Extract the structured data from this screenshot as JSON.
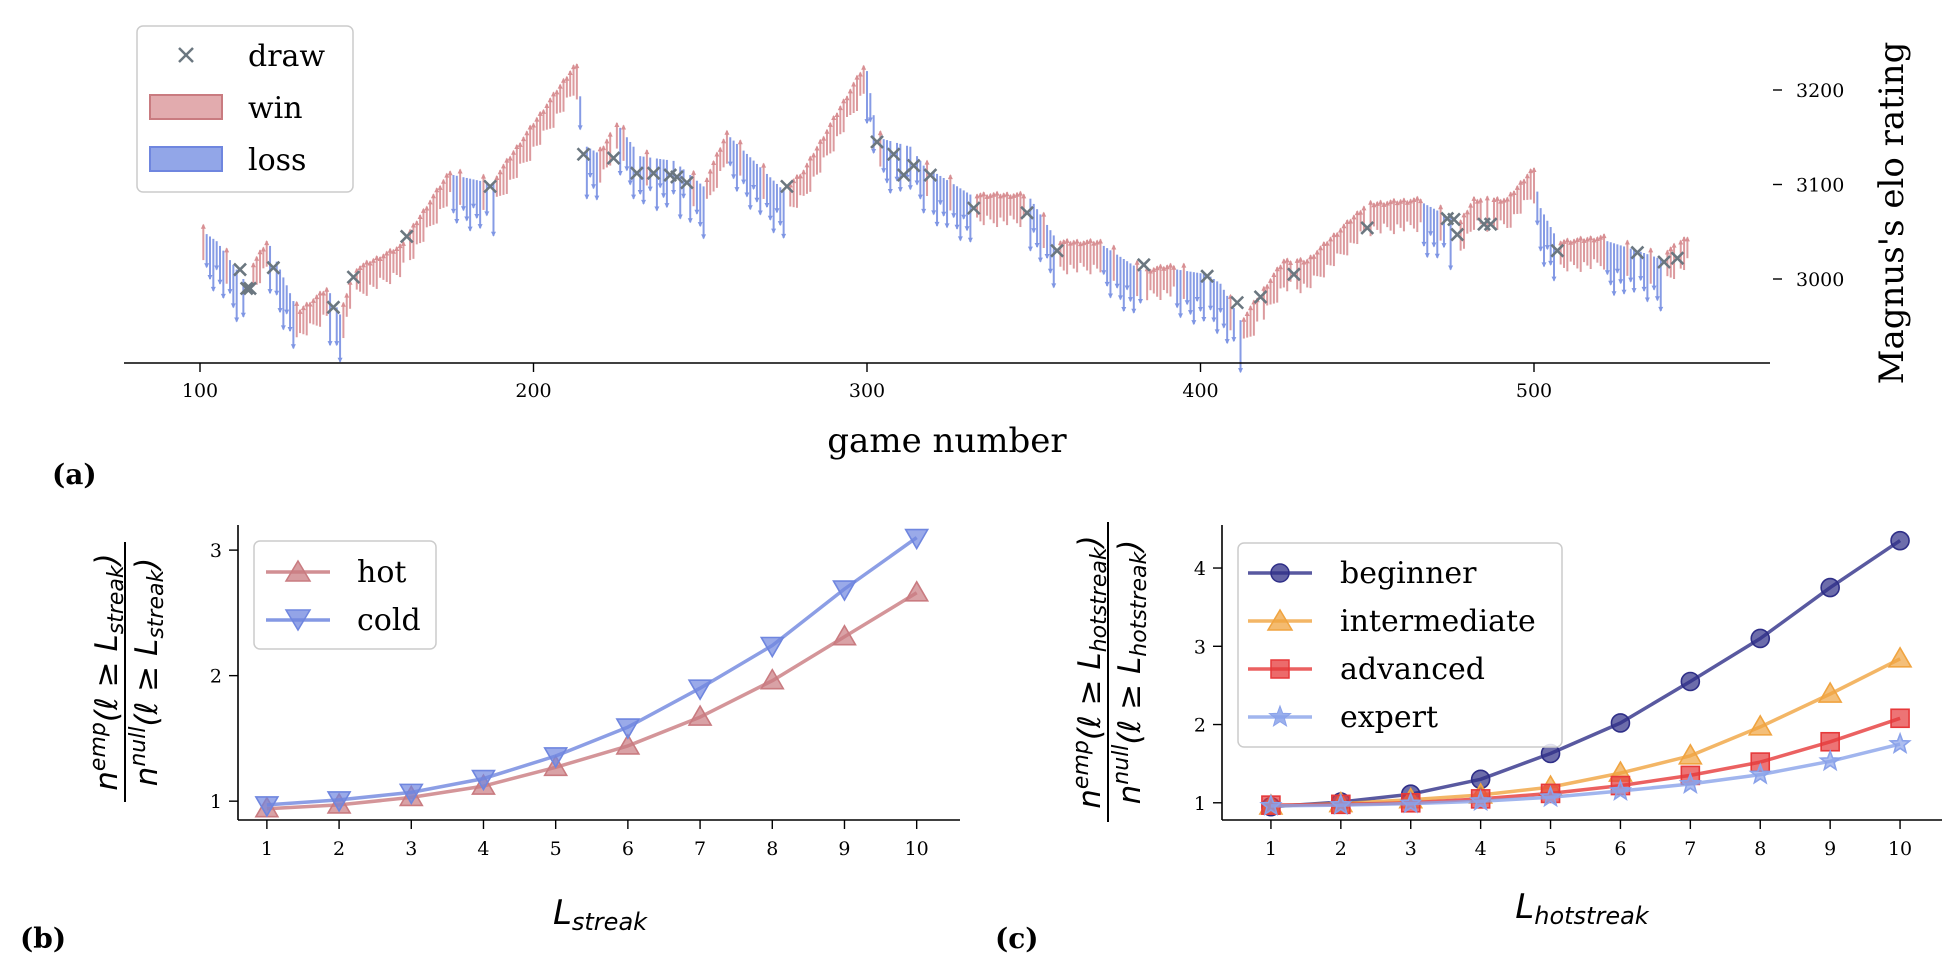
{
  "chart_data": [
    {
      "panel": "(a)",
      "type": "line",
      "xlabel": "game number",
      "ylabel": "Magnus's elo rating",
      "xticks": [
        100,
        200,
        300,
        400,
        500
      ],
      "yticks": [
        3000,
        3100,
        3200
      ],
      "xlim": [
        77,
        570
      ],
      "ylim": [
        2910,
        3290
      ],
      "legend": {
        "placement": "top-left",
        "entries": [
          "draw",
          "win",
          "loss"
        ]
      },
      "colors": {
        "draw": "#6b7780",
        "win": "#d88f93",
        "loss": "#7f96e4"
      },
      "waypoints": [
        [
          100,
          3050
        ],
        [
          104,
          3040
        ],
        [
          113,
          2995
        ],
        [
          120,
          3035
        ],
        [
          129,
          2960
        ],
        [
          138,
          2985
        ],
        [
          142,
          2955
        ],
        [
          146,
          3005
        ],
        [
          160,
          3030
        ],
        [
          175,
          3110
        ],
        [
          188,
          3100
        ],
        [
          212,
          3220
        ],
        [
          215,
          3140
        ],
        [
          220,
          3130
        ],
        [
          225,
          3160
        ],
        [
          231,
          3130
        ],
        [
          241,
          3125
        ],
        [
          251,
          3095
        ],
        [
          258,
          3150
        ],
        [
          275,
          3090
        ],
        [
          281,
          3110
        ],
        [
          299,
          3220
        ],
        [
          302,
          3150
        ],
        [
          312,
          3140
        ],
        [
          316,
          3120
        ],
        [
          332,
          3085
        ],
        [
          348,
          3085
        ],
        [
          357,
          3035
        ],
        [
          370,
          3035
        ],
        [
          383,
          3005
        ],
        [
          392,
          3010
        ],
        [
          401,
          3005
        ],
        [
          405,
          2995
        ],
        [
          412,
          2950
        ],
        [
          425,
          3015
        ],
        [
          432,
          3015
        ],
        [
          450,
          3075
        ],
        [
          466,
          3080
        ],
        [
          474,
          3065
        ],
        [
          477,
          3050
        ],
        [
          482,
          3080
        ],
        [
          492,
          3080
        ],
        [
          499,
          3110
        ],
        [
          501,
          3075
        ],
        [
          507,
          3035
        ],
        [
          521,
          3040
        ],
        [
          530,
          3030
        ],
        [
          538,
          3020
        ],
        [
          546,
          3040
        ]
      ],
      "draw_games": [
        [
          112,
          3010
        ],
        [
          114,
          2990
        ],
        [
          115,
          2990
        ],
        [
          122,
          3012
        ],
        [
          140,
          2970
        ],
        [
          146,
          3002
        ],
        [
          162,
          3045
        ],
        [
          187,
          3098
        ],
        [
          215,
          3132
        ],
        [
          224,
          3128
        ],
        [
          231,
          3112
        ],
        [
          236,
          3112
        ],
        [
          241,
          3110
        ],
        [
          243,
          3108
        ],
        [
          246,
          3102
        ],
        [
          276,
          3098
        ],
        [
          303,
          3145
        ],
        [
          308,
          3132
        ],
        [
          311,
          3110
        ],
        [
          314,
          3120
        ],
        [
          319,
          3110
        ],
        [
          332,
          3075
        ],
        [
          348,
          3070
        ],
        [
          357,
          3030
        ],
        [
          383,
          3015
        ],
        [
          402,
          3003
        ],
        [
          411,
          2975
        ],
        [
          418,
          2981
        ],
        [
          428,
          3005
        ],
        [
          450,
          3054
        ],
        [
          474,
          3064
        ],
        [
          476,
          3063
        ],
        [
          477,
          3047
        ],
        [
          485,
          3058
        ],
        [
          487,
          3058
        ],
        [
          507,
          3030
        ],
        [
          531,
          3028
        ],
        [
          539,
          3018
        ],
        [
          543,
          3022
        ]
      ]
    },
    {
      "panel": "(b)",
      "type": "line",
      "xlabel": "L_streak",
      "ylabel": "n^emp(ℓ ≥ L_streak) / n^null(ℓ ≥ L_streak)",
      "x": [
        1,
        2,
        3,
        4,
        5,
        6,
        7,
        8,
        9,
        10
      ],
      "xlim": [
        0.6,
        10.6
      ],
      "ylim": [
        0.85,
        3.2
      ],
      "yticks": [
        1,
        2,
        3
      ],
      "legend": {
        "placement": "top-left"
      },
      "series": [
        {
          "name": "hot",
          "color": "#c97b80",
          "marker": "triangle-up",
          "values": [
            0.94,
            0.97,
            1.03,
            1.12,
            1.27,
            1.44,
            1.67,
            1.96,
            2.31,
            2.66
          ]
        },
        {
          "name": "cold",
          "color": "#6f86df",
          "marker": "triangle-down",
          "values": [
            0.97,
            1.01,
            1.07,
            1.18,
            1.36,
            1.59,
            1.9,
            2.24,
            2.69,
            3.1
          ]
        }
      ]
    },
    {
      "panel": "(c)",
      "type": "line",
      "xlabel": "L_hotstreak",
      "ylabel": "n^emp(ℓ ≥ L_hotstreak) / n^null(ℓ ≥ L_hotstreak)",
      "x": [
        1,
        2,
        3,
        4,
        5,
        6,
        7,
        8,
        9,
        10
      ],
      "xlim": [
        0.3,
        10.6
      ],
      "ylim": [
        0.78,
        4.55
      ],
      "yticks": [
        1,
        2,
        3,
        4
      ],
      "legend": {
        "placement": "top-left"
      },
      "series": [
        {
          "name": "beginner",
          "color": "#2f2f88",
          "marker": "circle",
          "values": [
            0.95,
            1.01,
            1.11,
            1.3,
            1.63,
            2.02,
            2.55,
            3.1,
            3.75,
            4.35
          ]
        },
        {
          "name": "intermediate",
          "color": "#f0a440",
          "marker": "triangle-up",
          "values": [
            0.96,
            0.99,
            1.04,
            1.1,
            1.2,
            1.38,
            1.6,
            1.97,
            2.39,
            2.84
          ]
        },
        {
          "name": "advanced",
          "color": "#e6393a",
          "marker": "square",
          "values": [
            0.97,
            0.98,
            1.0,
            1.05,
            1.12,
            1.22,
            1.35,
            1.52,
            1.78,
            2.08
          ]
        },
        {
          "name": "expert",
          "color": "#8aa2ea",
          "marker": "star",
          "values": [
            0.96,
            0.97,
            0.99,
            1.02,
            1.07,
            1.15,
            1.24,
            1.36,
            1.53,
            1.75
          ]
        }
      ]
    }
  ],
  "labels": {
    "panel_a": "(a)",
    "panel_b": "(b)",
    "panel_c": "(c)",
    "a_xlabel": "game number",
    "a_ylabel": "Magnus's elo rating",
    "legend_draw": "draw",
    "legend_win": "win",
    "legend_loss": "loss",
    "b_legend_hot": "hot",
    "b_legend_cold": "cold",
    "c_legend_beginner": "beginner",
    "c_legend_intermediate": "intermediate",
    "c_legend_advanced": "advanced",
    "c_legend_expert": "expert",
    "n": "n",
    "emp": "emp",
    "null": "null",
    "ell_ge": "(ℓ ≥ ",
    "L": "L",
    "streak": "streak",
    "hotstreak": "hotstreak",
    "close_paren": ")"
  }
}
